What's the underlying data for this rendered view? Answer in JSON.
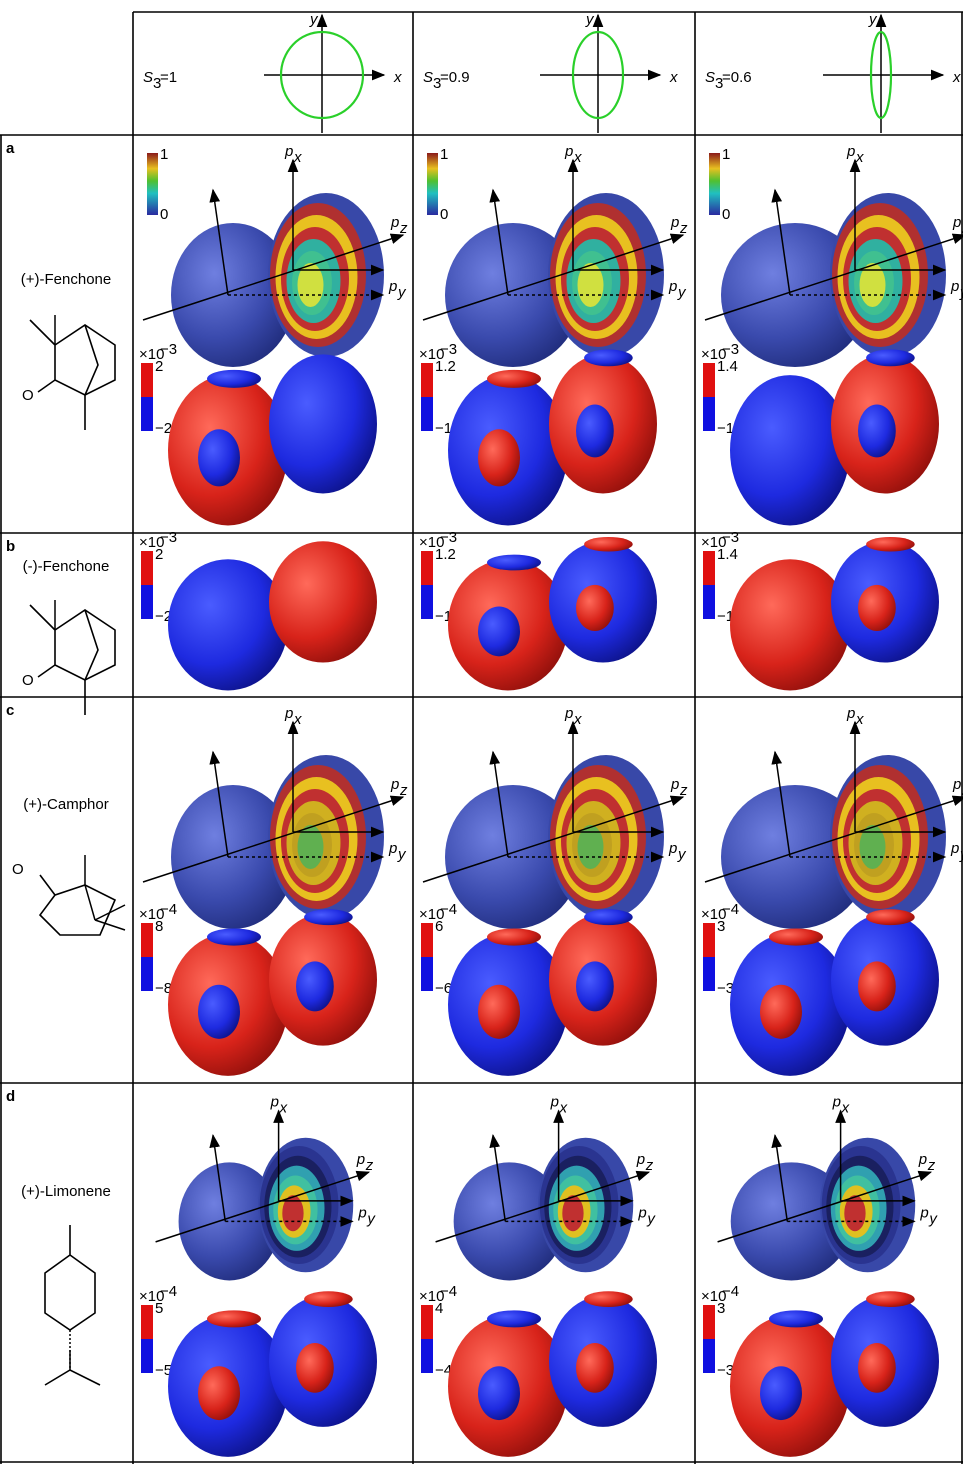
{
  "header": {
    "columns": [
      {
        "symbol": "S",
        "subscript": "3",
        "value": "=1"
      },
      {
        "symbol": "S",
        "subscript": "3",
        "value": "=0.9"
      },
      {
        "symbol": "S",
        "subscript": "3",
        "value": "=0.6"
      }
    ],
    "axis_x": "x",
    "axis_y": "y"
  },
  "momentum_axes": {
    "symbol": "p",
    "x": "x",
    "y": "y",
    "z": "z"
  },
  "pad_colorbar": {
    "max": "1",
    "min": "0"
  },
  "rows": [
    {
      "letter": "a",
      "molecule": "(+)-Fenchone",
      "atom_label": "O",
      "difference_scale": {
        "base": "×10",
        "exponent": "−3"
      },
      "difference_ranges": [
        {
          "max": "2",
          "min": "−2"
        },
        {
          "max": "1.2",
          "min": "−1.2"
        },
        {
          "max": "1.4",
          "min": "−1.4"
        }
      ]
    },
    {
      "letter": "b",
      "molecule": "(-)-Fenchone",
      "atom_label": "O",
      "difference_scale": {
        "base": "×10",
        "exponent": "−3"
      },
      "difference_ranges": [
        {
          "max": "2",
          "min": "−2"
        },
        {
          "max": "1.2",
          "min": "−1.2"
        },
        {
          "max": "1.4",
          "min": "−1.4"
        }
      ]
    },
    {
      "letter": "c",
      "molecule": "(+)-Camphor",
      "atom_label": "O",
      "difference_scale": {
        "base": "×10",
        "exponent": "−4"
      },
      "difference_ranges": [
        {
          "max": "8",
          "min": "−8"
        },
        {
          "max": "6",
          "min": "−6"
        },
        {
          "max": "3",
          "min": "−3"
        }
      ]
    },
    {
      "letter": "d",
      "molecule": "(+)-Limonene",
      "difference_scale": {
        "base": "×10",
        "exponent": "−4"
      },
      "difference_ranges": [
        {
          "max": "5",
          "min": "−5"
        },
        {
          "max": "4",
          "min": "−4"
        },
        {
          "max": "3",
          "min": "−3"
        }
      ]
    }
  ]
}
